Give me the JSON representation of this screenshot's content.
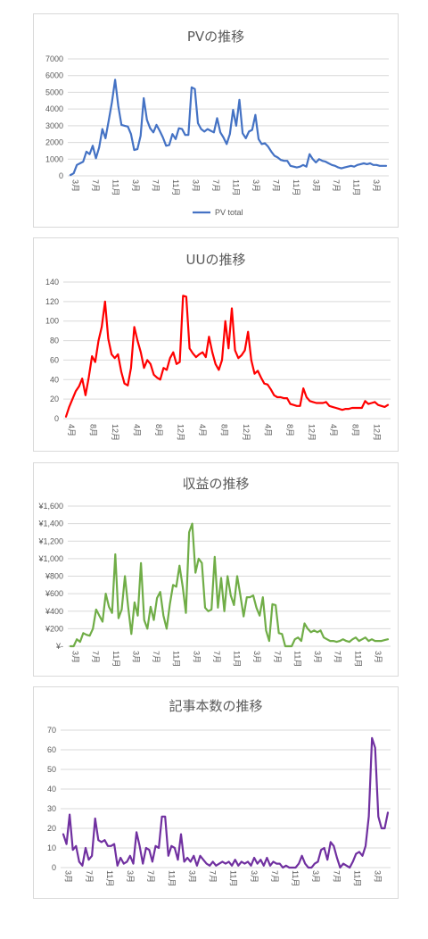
{
  "chart_data": [
    {
      "type": "line",
      "title": "PVの推移",
      "ylim": [
        0,
        7000
      ],
      "y_ticks": [
        0,
        1000,
        2000,
        3000,
        4000,
        5000,
        6000,
        7000
      ],
      "y_tick_labels": [
        "0",
        "1000",
        "2000",
        "3000",
        "4000",
        "5000",
        "6000",
        "7000"
      ],
      "x_tick_labels": [
        "3月",
        "7月",
        "11月",
        "3月",
        "7月",
        "11月",
        "3月",
        "7月",
        "11月",
        "3月",
        "7月",
        "11月",
        "3月",
        "7月",
        "11月",
        "3月"
      ],
      "legend": "bottom",
      "grid": true,
      "color": "#4472c4",
      "series": [
        {
          "name": "PV total",
          "values": [
            50,
            150,
            650,
            750,
            850,
            1450,
            1300,
            1800,
            1050,
            1700,
            2800,
            2250,
            3300,
            4400,
            5750,
            4200,
            3050,
            3000,
            2950,
            2500,
            1550,
            1600,
            2400,
            4650,
            3350,
            2850,
            2600,
            3050,
            2700,
            2300,
            1800,
            1850,
            2500,
            2200,
            2850,
            2800,
            2450,
            2450,
            5300,
            5200,
            3150,
            2800,
            2650,
            2800,
            2700,
            2600,
            3450,
            2600,
            2300,
            1900,
            2500,
            3950,
            3000,
            4550,
            2550,
            2250,
            2650,
            2750,
            3650,
            2200,
            1900,
            1950,
            1750,
            1450,
            1200,
            1100,
            950,
            900,
            900,
            600,
            550,
            500,
            550,
            650,
            550,
            1300,
            1000,
            800,
            1000,
            900,
            850,
            750,
            650,
            600,
            500,
            450,
            500,
            550,
            600,
            550,
            650,
            700,
            750,
            700,
            750,
            650,
            650,
            600,
            600,
            600
          ]
        }
      ]
    },
    {
      "type": "line",
      "title": "UUの推移",
      "ylim": [
        0,
        140
      ],
      "y_ticks": [
        0,
        20,
        40,
        60,
        80,
        100,
        120,
        140
      ],
      "y_tick_labels": [
        "0",
        "20",
        "40",
        "60",
        "80",
        "100",
        "120",
        "140"
      ],
      "x_tick_labels": [
        "4月",
        "8月",
        "12月",
        "4月",
        "8月",
        "12月",
        "4月",
        "8月",
        "12月",
        "4月",
        "8月",
        "12月",
        "4月",
        "8月",
        "12月"
      ],
      "grid": true,
      "color": "#ff0000",
      "series": [
        {
          "values": [
            2,
            12,
            20,
            28,
            33,
            41,
            24,
            42,
            64,
            58,
            80,
            94,
            120,
            82,
            66,
            62,
            66,
            48,
            36,
            34,
            52,
            94,
            80,
            68,
            52,
            60,
            56,
            45,
            42,
            40,
            52,
            50,
            62,
            68,
            56,
            58,
            126,
            125,
            72,
            67,
            63,
            66,
            68,
            63,
            84,
            68,
            56,
            50,
            60,
            100,
            72,
            113,
            70,
            62,
            65,
            70,
            89,
            60,
            46,
            49,
            42,
            36,
            35,
            30,
            24,
            22,
            22,
            21,
            21,
            15,
            14,
            13,
            13,
            31,
            22,
            18,
            17,
            16,
            16,
            16,
            17,
            13,
            12,
            11,
            10,
            9,
            10,
            10,
            11,
            11,
            11,
            11,
            18,
            15,
            16,
            17,
            14,
            13,
            12,
            14
          ]
        }
      ]
    },
    {
      "type": "line",
      "title": "収益の推移",
      "ylim": [
        0,
        1600
      ],
      "y_ticks": [
        0,
        200,
        400,
        600,
        800,
        1000,
        1200,
        1400,
        1600
      ],
      "y_tick_labels": [
        "¥-",
        "¥200",
        "¥400",
        "¥600",
        "¥800",
        "¥1,000",
        "¥1,200",
        "¥1,400",
        "¥1,600"
      ],
      "x_tick_labels": [
        "3月",
        "7月",
        "11月",
        "3月",
        "7月",
        "11月",
        "3月",
        "7月",
        "11月",
        "3月",
        "7月",
        "11月",
        "3月",
        "7月",
        "11月",
        "3月"
      ],
      "grid": true,
      "color": "#70ad47",
      "series": [
        {
          "values": [
            0,
            0,
            80,
            50,
            150,
            130,
            120,
            200,
            420,
            350,
            280,
            600,
            450,
            380,
            1050,
            320,
            420,
            800,
            450,
            140,
            500,
            350,
            950,
            300,
            200,
            450,
            300,
            550,
            620,
            350,
            200,
            480,
            700,
            680,
            920,
            680,
            380,
            1300,
            1400,
            840,
            1000,
            950,
            440,
            400,
            420,
            1020,
            440,
            780,
            400,
            800,
            580,
            470,
            800,
            580,
            340,
            560,
            560,
            580,
            440,
            350,
            560,
            180,
            60,
            480,
            470,
            150,
            140,
            0,
            0,
            0,
            80,
            100,
            60,
            260,
            200,
            160,
            180,
            160,
            180,
            100,
            80,
            60,
            60,
            50,
            60,
            80,
            60,
            50,
            80,
            100,
            60,
            80,
            100,
            60,
            80,
            60,
            60,
            60,
            70,
            80
          ]
        }
      ]
    },
    {
      "type": "line",
      "title": "記事本数の推移",
      "ylim": [
        0,
        70
      ],
      "y_ticks": [
        0,
        10,
        20,
        30,
        40,
        50,
        60,
        70
      ],
      "y_tick_labels": [
        "0",
        "10",
        "20",
        "30",
        "40",
        "50",
        "60",
        "70"
      ],
      "x_tick_labels": [
        "3月",
        "7月",
        "11月",
        "3月",
        "7月",
        "11月",
        "3月",
        "7月",
        "11月",
        "3月",
        "7月",
        "11月",
        "3月",
        "7月",
        "11月",
        "3月"
      ],
      "grid": true,
      "color": "#7030a0",
      "series": [
        {
          "values": [
            17,
            12,
            27,
            9,
            11,
            3,
            1,
            10,
            4,
            6,
            25,
            14,
            13,
            14,
            11,
            11,
            12,
            1,
            5,
            2,
            3,
            6,
            2,
            18,
            11,
            2,
            10,
            9,
            3,
            11,
            10,
            26,
            26,
            6,
            11,
            10,
            4,
            17,
            3,
            5,
            3,
            6,
            1,
            6,
            4,
            2,
            1,
            3,
            1,
            2,
            3,
            2,
            3,
            1,
            4,
            1,
            3,
            2,
            3,
            1,
            5,
            2,
            4,
            1,
            5,
            1,
            3,
            2,
            2,
            0,
            1,
            0,
            0,
            0,
            2,
            6,
            2,
            0,
            0,
            2,
            3,
            9,
            10,
            4,
            13,
            11,
            5,
            0,
            2,
            1,
            0,
            3,
            7,
            8,
            6,
            11,
            26,
            66,
            61,
            26,
            20,
            20,
            28
          ]
        }
      ]
    }
  ]
}
